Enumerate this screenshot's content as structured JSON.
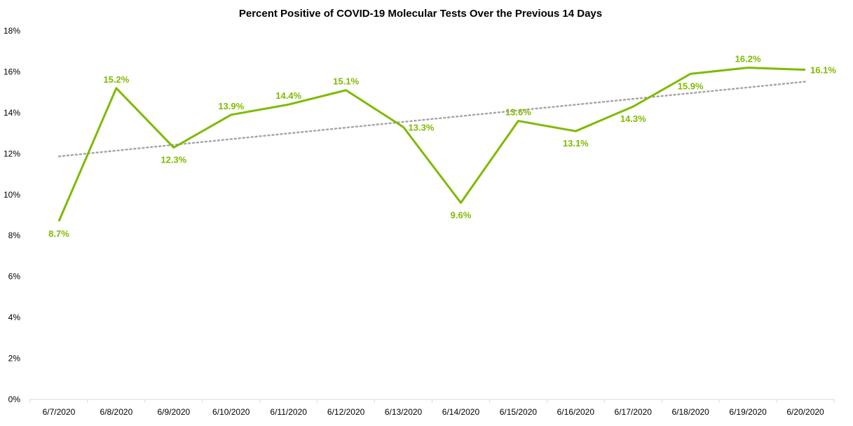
{
  "chart_data": {
    "type": "line",
    "title": "Percent Positive of COVID-19 Molecular Tests Over the Previous 14 Days",
    "xlabel": "",
    "ylabel": "",
    "categories": [
      "6/7/2020",
      "6/8/2020",
      "6/9/2020",
      "6/10/2020",
      "6/11/2020",
      "6/12/2020",
      "6/13/2020",
      "6/14/2020",
      "6/15/2020",
      "6/16/2020",
      "6/17/2020",
      "6/18/2020",
      "6/19/2020",
      "6/20/2020"
    ],
    "series": [
      {
        "values": [
          8.7,
          15.2,
          12.3,
          13.9,
          14.4,
          15.1,
          13.3,
          9.6,
          13.6,
          13.1,
          14.3,
          15.9,
          16.2,
          16.1
        ],
        "labels": [
          "8.7%",
          "15.2%",
          "12.3%",
          "13.9%",
          "14.4%",
          "15.1%",
          "13.3%",
          "9.6%",
          "13.6%",
          "13.1%",
          "14.3%",
          "15.9%",
          "16.2%",
          "16.1%"
        ]
      }
    ],
    "trendline": {
      "style": "dotted",
      "type": "linear"
    },
    "ylim": [
      0,
      18
    ],
    "yticks": [
      "0%",
      "2%",
      "4%",
      "6%",
      "8%",
      "10%",
      "12%",
      "14%",
      "16%",
      "18%"
    ],
    "grid": false,
    "legend": "none",
    "colors": {
      "series": "#7fba00",
      "trendline": "#a6a6a6",
      "axis": "#d9d9d9"
    }
  }
}
